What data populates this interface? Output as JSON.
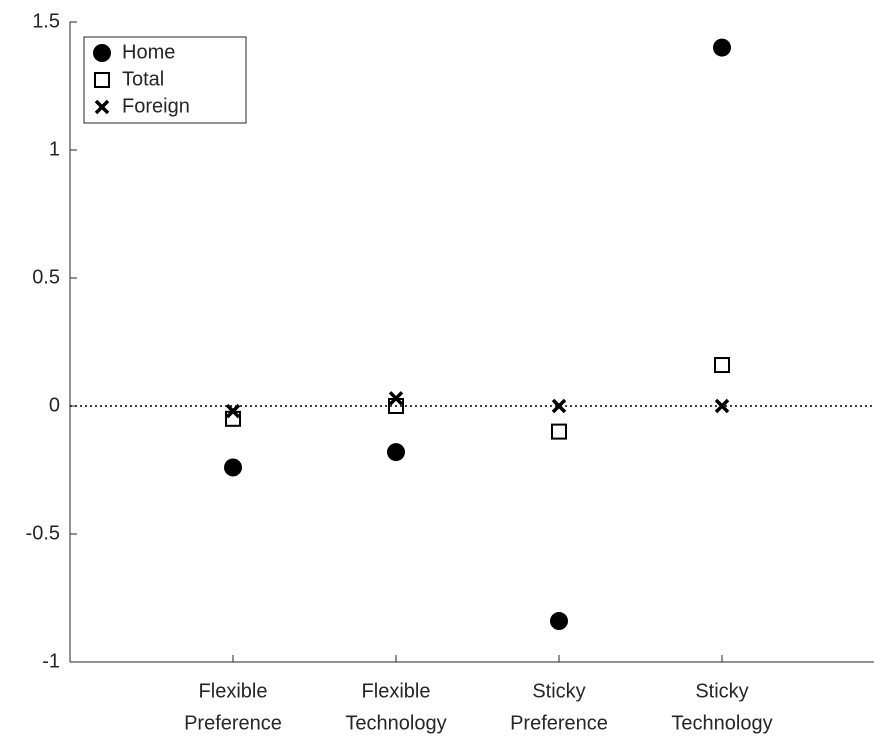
{
  "chart_data": {
    "type": "scatter",
    "categories": [
      [
        "Flexible",
        "Preference"
      ],
      [
        "Flexible",
        "Technology"
      ],
      [
        "Sticky",
        "Preference"
      ],
      [
        "Sticky",
        "Technology"
      ]
    ],
    "series": [
      {
        "name": "Home",
        "marker": "circle",
        "color": "#000000",
        "values": [
          -0.24,
          -0.18,
          -0.84,
          1.4
        ]
      },
      {
        "name": "Total",
        "marker": "square",
        "color": "#000000",
        "values": [
          -0.05,
          0,
          -0.1,
          0.16
        ]
      },
      {
        "name": "Foreign",
        "marker": "x",
        "color": "#000000",
        "values": [
          -0.02,
          0.03,
          0,
          0
        ]
      }
    ],
    "ylim": [
      -1,
      1.5
    ],
    "yticks": [
      -1,
      -0.5,
      0,
      0.5,
      1,
      1.5
    ],
    "reference_line": 0,
    "legend": "upper left",
    "grid": false
  }
}
